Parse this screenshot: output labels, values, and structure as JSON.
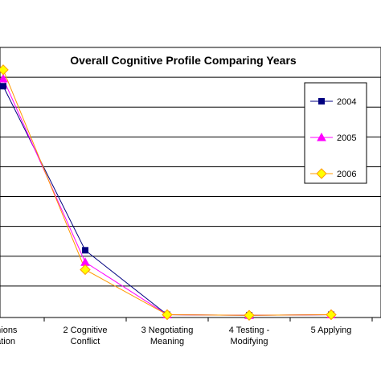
{
  "chart_data": {
    "type": "line",
    "title": "Overall Cognitive Profile Comparing Years",
    "xlabel": "",
    "ylabel": "",
    "categories": [
      [
        "pinions",
        "nation"
      ],
      [
        "2 Cognitive",
        "Conflict"
      ],
      [
        "3 Negotiating",
        "Meaning"
      ],
      [
        "4 Testing -",
        "Modifying"
      ],
      [
        "5 Applying"
      ]
    ],
    "ylim": [
      0,
      9
    ],
    "grid": true,
    "legend_position": "right",
    "series": [
      {
        "name": "2004",
        "values": [
          7.7,
          2.2,
          0.04,
          0.02,
          0.04
        ],
        "color": "#000080",
        "marker": "square"
      },
      {
        "name": "2005",
        "values": [
          7.95,
          1.8,
          0.04,
          0.02,
          0.04
        ],
        "color": "#FF00FF",
        "marker": "triangle"
      },
      {
        "name": "2006",
        "values": [
          8.25,
          1.55,
          0.04,
          0.02,
          0.04
        ],
        "color": "#FF9900",
        "marker_fill": "#FFFF00",
        "marker": "diamond"
      }
    ]
  }
}
